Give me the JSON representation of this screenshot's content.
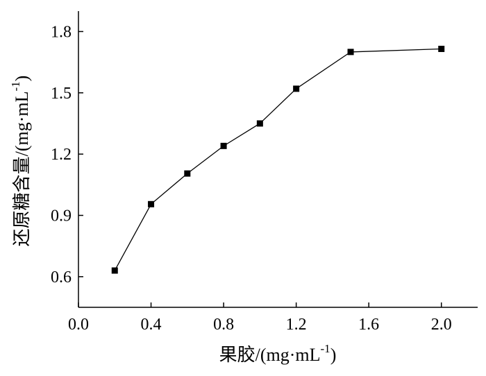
{
  "chart_data": {
    "type": "line",
    "xlabel": "果胶/(mg·mL",
    "xlabel_sup": "-1",
    "xlabel_close": ")",
    "ylabel": "还原糖含量/(mg·mL",
    "ylabel_sup": "-1",
    "ylabel_close": ")",
    "xlim": [
      0.0,
      2.2
    ],
    "ylim": [
      0.45,
      1.9
    ],
    "x_ticks": [
      0.0,
      0.4,
      0.8,
      1.2,
      1.6,
      2.0
    ],
    "x_tick_labels": [
      "0.0",
      "0.4",
      "0.8",
      "1.2",
      "1.6",
      "2.0"
    ],
    "y_ticks": [
      0.6,
      0.9,
      1.2,
      1.5,
      1.8
    ],
    "y_tick_labels": [
      "0.6",
      "0.9",
      "1.2",
      "1.5",
      "1.8"
    ],
    "grid": false,
    "marker": "square",
    "series": [
      {
        "x": [
          0.2,
          0.4,
          0.6,
          0.8,
          1.0,
          1.2,
          1.5,
          2.0
        ],
        "y": [
          0.63,
          0.955,
          1.105,
          1.24,
          1.35,
          1.52,
          1.7,
          1.715
        ]
      }
    ]
  }
}
